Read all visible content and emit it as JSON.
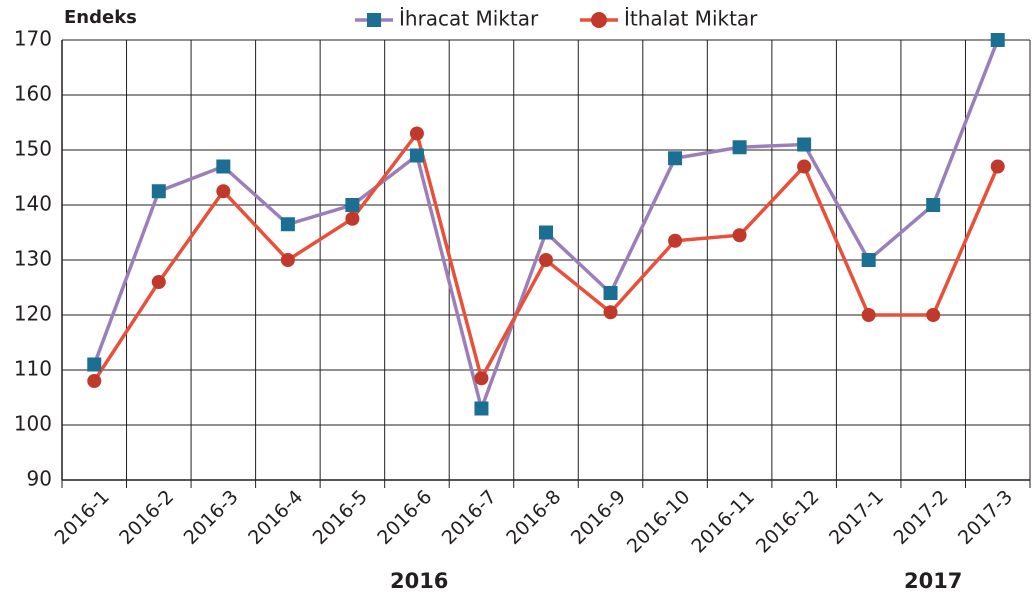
{
  "chart_data": {
    "type": "line",
    "y_label": "Endeks",
    "categories": [
      "2016-1",
      "2016-2",
      "2016-3",
      "2016-4",
      "2016-5",
      "2016-6",
      "2016-7",
      "2016-8",
      "2016-9",
      "2016-10",
      "2016-11",
      "2016-12",
      "2017-1",
      "2017-2",
      "2017-3"
    ],
    "x_groups": [
      {
        "label": "2016",
        "span": 12
      },
      {
        "label": "2017",
        "span": 3
      }
    ],
    "series": [
      {
        "name": "İhracat Miktar",
        "color": "#9b7fba",
        "marker_color": "#1b6f93",
        "marker": "square",
        "values": [
          111,
          142.5,
          147,
          136.5,
          140,
          149,
          103,
          135,
          124,
          148.5,
          150.5,
          151,
          130,
          140,
          170
        ]
      },
      {
        "name": "İthalat Miktar",
        "color": "#e8503a",
        "marker_color": "#c0392b",
        "marker": "circle",
        "values": [
          108,
          126,
          142.5,
          130,
          137.5,
          153,
          108.5,
          130,
          120.5,
          133.5,
          134.5,
          147,
          120,
          120,
          147
        ]
      }
    ],
    "ylim": [
      90,
      170
    ],
    "yticks": [
      90,
      100,
      110,
      120,
      130,
      140,
      150,
      160,
      170
    ],
    "grid": true,
    "legend": "top"
  }
}
